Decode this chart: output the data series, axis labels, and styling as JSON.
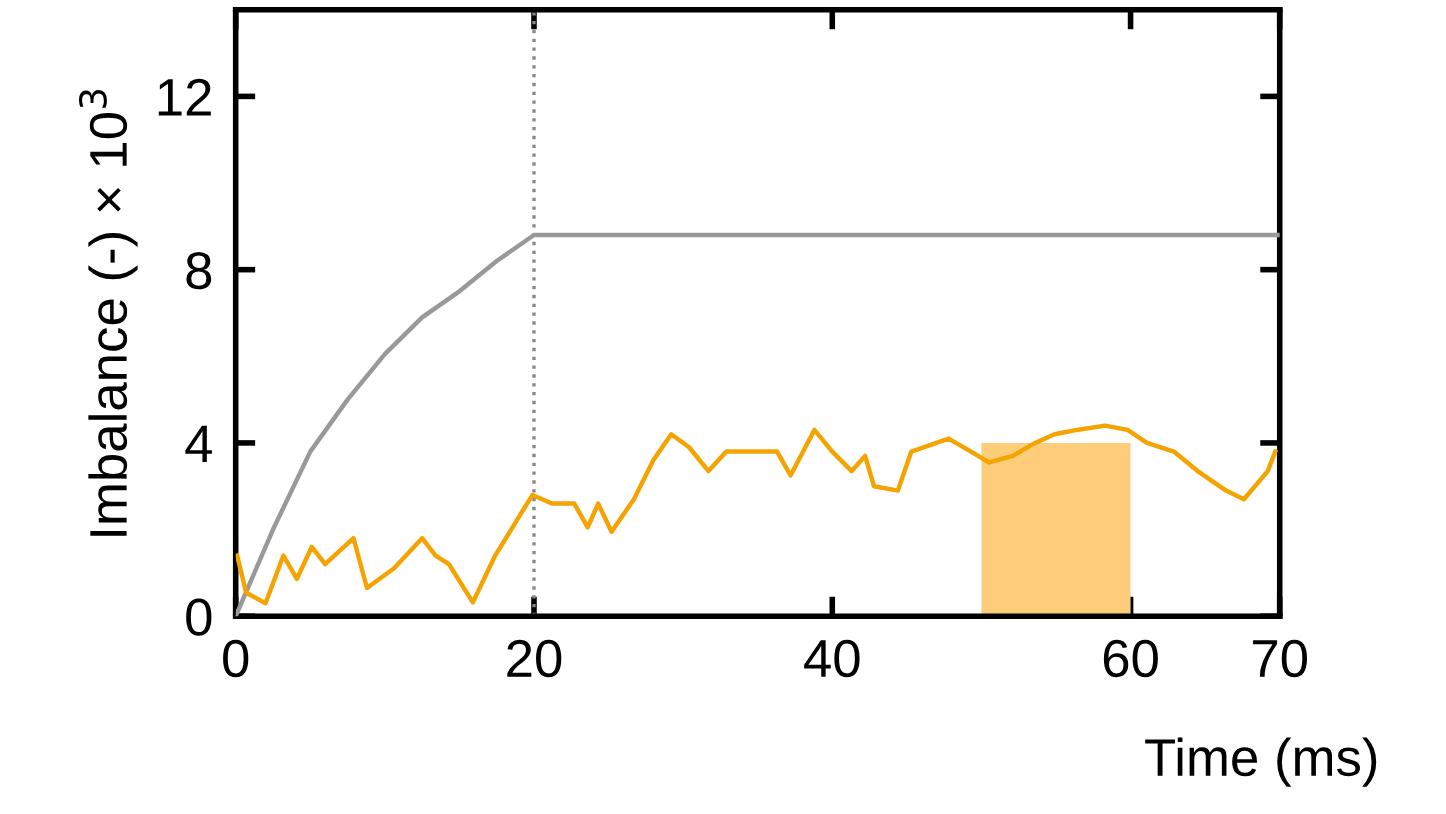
{
  "chart_data": {
    "type": "line",
    "xlabel": "Time (ms)",
    "ylabel": "Imbalance (-) × 10$^{3}$",
    "xlim": [
      0,
      70
    ],
    "xticks": [
      0,
      20,
      40,
      60,
      70
    ],
    "ylim": [
      0,
      14
    ],
    "yticks": [
      0,
      4,
      8,
      12
    ],
    "grid": false,
    "legend": false,
    "marker": "none",
    "line_style": "solid",
    "ref_lines": [
      {
        "axis": "x",
        "value": 20,
        "color": "#888888",
        "line_style": "dotted"
      }
    ],
    "series": [
      {
        "type": "area",
        "color": "#fdcd7a",
        "x": [
          50,
          60
        ],
        "values": [
          4,
          4
        ]
      },
      {
        "color": "#999999",
        "x": [
          0,
          2.5,
          5,
          7.5,
          10,
          12.5,
          15,
          17.5,
          20,
          70
        ],
        "values": [
          0,
          2.0,
          3.8,
          5.0,
          6.05,
          6.9,
          7.5,
          8.2,
          8.8,
          8.8
        ]
      },
      {
        "color": "#f5a300",
        "x": [
          0.1,
          0.7,
          2,
          3.2,
          4.1,
          5.1,
          6,
          7.9,
          8.8,
          10.6,
          12.5,
          13.4,
          14.3,
          15.9,
          17.4,
          19,
          19.9,
          21.2,
          22.7,
          23.6,
          24.3,
          25.2,
          26.7,
          28,
          29.2,
          30.4,
          31.7,
          32.9,
          34.8,
          36.3,
          37.2,
          38.8,
          40,
          41.3,
          42.2,
          42.8,
          44.4,
          45.3,
          47.8,
          49.3,
          50.5,
          52.1,
          53.6,
          54.9,
          56.4,
          58.3,
          59.8,
          61.1,
          62.9,
          64.5,
          66.4,
          67.6,
          69.2,
          69.7
        ],
        "values": [
          1.4,
          0.54,
          0.3,
          1.4,
          0.86,
          1.6,
          1.2,
          1.8,
          0.65,
          1.1,
          1.8,
          1.4,
          1.2,
          0.32,
          1.4,
          2.3,
          2.8,
          2.6,
          2.6,
          2.05,
          2.6,
          1.95,
          2.7,
          3.6,
          4.2,
          3.9,
          3.35,
          3.8,
          3.8,
          3.8,
          3.25,
          4.3,
          3.8,
          3.35,
          3.7,
          3.0,
          2.9,
          3.8,
          4.1,
          3.8,
          3.55,
          3.7,
          4.0,
          4.2,
          4.3,
          4.4,
          4.3,
          4.0,
          3.8,
          3.35,
          2.9,
          2.7,
          3.35,
          3.8
        ]
      }
    ]
  }
}
